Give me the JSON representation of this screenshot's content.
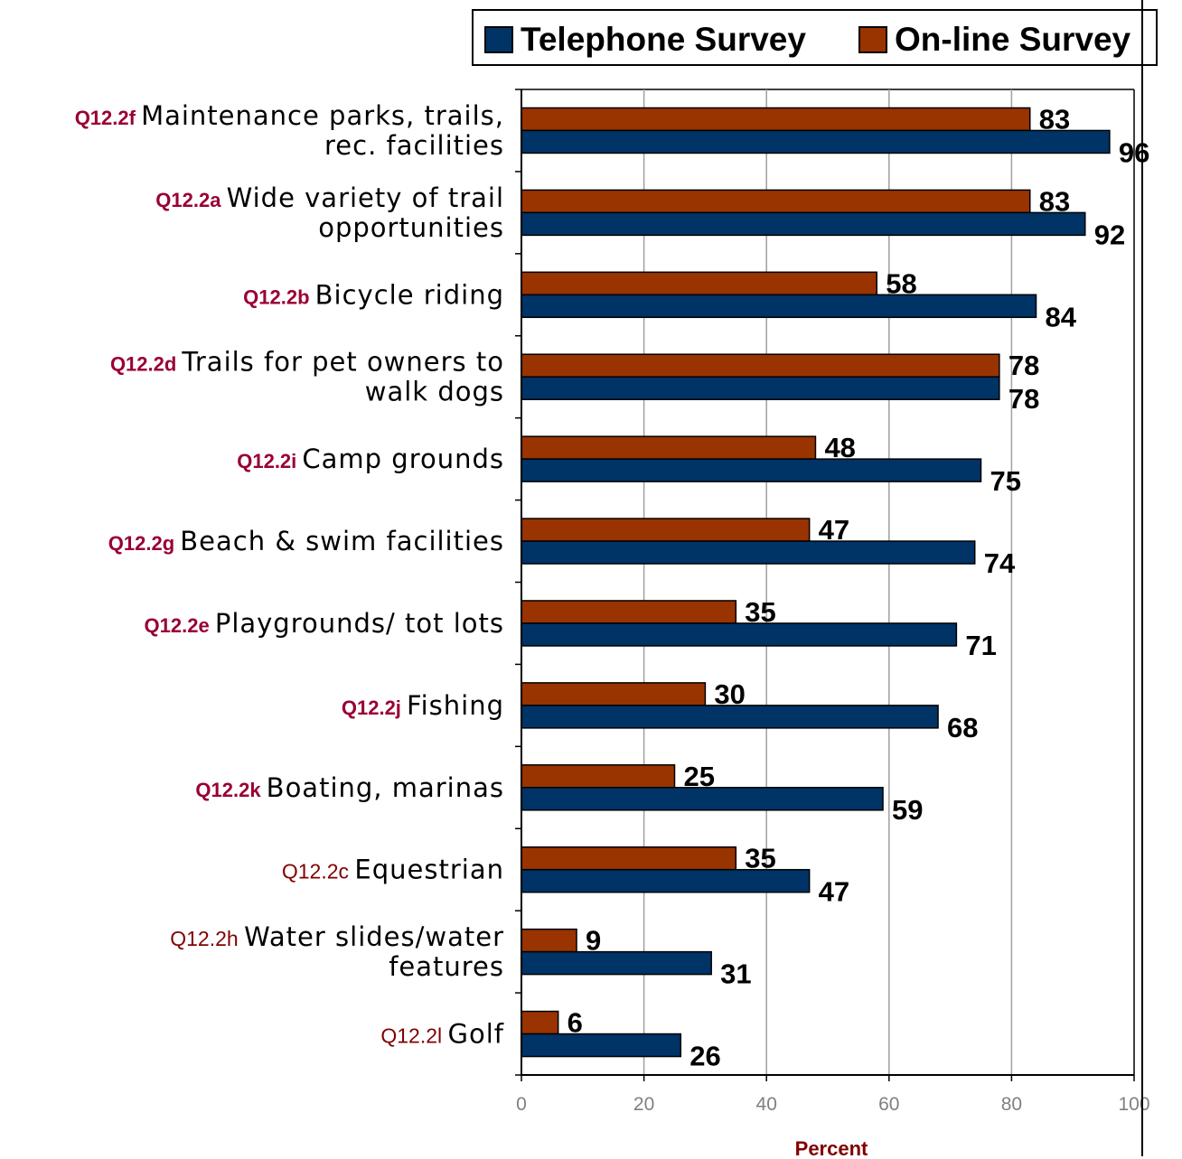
{
  "colors": {
    "telephone": "#003366",
    "online": "#993300",
    "code": "#990033",
    "code_plain": "#800000",
    "grid": "#a0a0a0",
    "tick_label": "#808080"
  },
  "legend": {
    "telephone_label": "Telephone Survey",
    "online_label": "On-line Survey"
  },
  "chart_data": {
    "type": "bar",
    "orientation": "horizontal",
    "categories": [
      {
        "code": "Q12.2f",
        "bold_code": true,
        "lines": [
          "Maintenance parks, trails,",
          "rec. facilities"
        ]
      },
      {
        "code": "Q12.2a",
        "bold_code": true,
        "lines": [
          "Wide variety of trail",
          "opportunities"
        ]
      },
      {
        "code": "Q12.2b",
        "bold_code": true,
        "lines": [
          "Bicycle riding"
        ]
      },
      {
        "code": "Q12.2d",
        "bold_code": true,
        "lines": [
          "Trails for pet owners to",
          "walk dogs"
        ]
      },
      {
        "code": "Q12.2i",
        "bold_code": true,
        "lines": [
          "Camp grounds"
        ]
      },
      {
        "code": "Q12.2g",
        "bold_code": true,
        "lines": [
          "Beach & swim facilities"
        ]
      },
      {
        "code": "Q12.2e",
        "bold_code": true,
        "lines": [
          "Playgrounds/ tot lots"
        ]
      },
      {
        "code": "Q12.2j",
        "bold_code": true,
        "lines": [
          "Fishing"
        ]
      },
      {
        "code": "Q12.2k",
        "bold_code": true,
        "lines": [
          "Boating, marinas"
        ]
      },
      {
        "code": "Q12.2c",
        "bold_code": false,
        "lines": [
          "Equestrian"
        ]
      },
      {
        "code": "Q12.2h",
        "bold_code": false,
        "lines": [
          "Water slides/water",
          "features"
        ]
      },
      {
        "code": "Q12.2l",
        "bold_code": false,
        "lines": [
          "Golf"
        ]
      }
    ],
    "series": [
      {
        "name": "On-line Survey",
        "key": "online",
        "values": [
          83,
          83,
          58,
          78,
          48,
          47,
          35,
          30,
          25,
          35,
          9,
          6
        ]
      },
      {
        "name": "Telephone Survey",
        "key": "telephone",
        "values": [
          96,
          92,
          84,
          78,
          75,
          74,
          71,
          68,
          59,
          47,
          31,
          26
        ]
      }
    ],
    "xlim": [
      0,
      100
    ],
    "xticks": [
      0,
      20,
      40,
      60,
      80,
      100
    ],
    "xlabel": "Percent",
    "ylabel": "",
    "title": "",
    "grid": true,
    "legend_position": "top"
  }
}
